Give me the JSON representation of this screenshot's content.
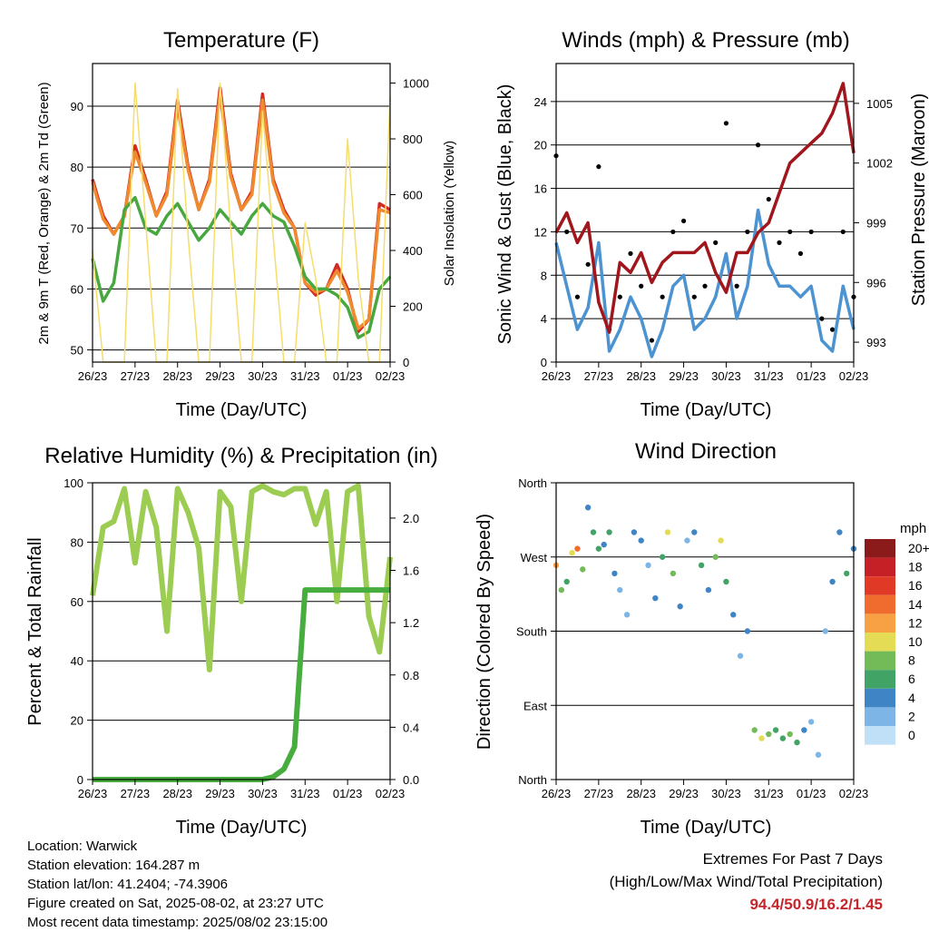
{
  "colors": {
    "temp_red": "#d42a24",
    "temp_orange": "#f08a2e",
    "dewpoint_green": "#48a83f",
    "solar_yellow": "#f6dd6b",
    "gust_black": "#000000",
    "wind_blue": "#4b93d1",
    "pressure_maroon": "#a0161c",
    "humidity_green": "#9ccd52",
    "precip_green": "#46ad3e",
    "extremes_red": "#c3262b"
  },
  "panels": {
    "temperature": {
      "title": "Temperature (F)",
      "ylabel_left": "2m & 9m T (Red, Orange) & 2m Td (Green)",
      "ylabel_right": "Solar Insolation (Yellow)",
      "xlabel": "Time (Day/UTC)"
    },
    "winds": {
      "title": "Winds (mph) & Pressure (mb)",
      "ylabel_left": "Sonic Wind & Gust (Blue, Black)",
      "ylabel_right": "Station Pressure (Maroon)",
      "xlabel": "Time (Day/UTC)"
    },
    "humidity": {
      "title": "Relative Humidity (%) & Precipitation (in)",
      "ylabel_left": "Percent & Total Rainfall",
      "xlabel": "Time (Day/UTC)"
    },
    "direction": {
      "title": "Wind Direction",
      "ylabel_left": "Direction (Colored By Speed)",
      "xlabel": "Time (Day/UTC)",
      "legend_title": "mph"
    }
  },
  "chart_data": [
    {
      "type": "line",
      "title": "Temperature (F)",
      "xlabel": "Time (Day/UTC)",
      "ylabel": "2m & 9m T (Red, Orange) & 2m Td (Green)",
      "y2label": "Solar Insolation (Yellow)",
      "x_ticks": [
        "26/23",
        "27/23",
        "28/23",
        "29/23",
        "30/23",
        "31/23",
        "01/23",
        "02/23"
      ],
      "ylim": [
        48,
        97
      ],
      "y_ticks": [
        50,
        60,
        70,
        80,
        90
      ],
      "y2lim": [
        0,
        1070
      ],
      "y2_ticks": [
        0,
        200,
        400,
        600,
        800,
        1000
      ],
      "grid": true,
      "x_hours": [
        0,
        6,
        12,
        18,
        24,
        30,
        36,
        42,
        48,
        54,
        60,
        66,
        72,
        78,
        84,
        90,
        96,
        102,
        108,
        114,
        120,
        126,
        132,
        138,
        144,
        150,
        156,
        162,
        168
      ],
      "series": [
        {
          "name": "2m T",
          "color": "#d42a24",
          "axis": "left",
          "values": [
            78,
            72,
            69,
            72,
            83.5,
            78,
            72,
            76,
            91,
            80,
            73,
            78,
            93,
            79,
            73,
            76,
            92,
            78,
            73,
            70,
            61,
            59,
            60,
            64,
            60,
            53,
            55,
            74,
            73
          ]
        },
        {
          "name": "9m T",
          "color": "#f08a2e",
          "axis": "left",
          "values": [
            77.5,
            71.5,
            69,
            72,
            82.5,
            77.5,
            72,
            75.5,
            90,
            79.5,
            73,
            77.5,
            92,
            78.5,
            73,
            75.5,
            91,
            77.5,
            72.5,
            70,
            61,
            59.5,
            60,
            63,
            59.5,
            53.5,
            55,
            73,
            72.5
          ]
        },
        {
          "name": "2m Td",
          "color": "#48a83f",
          "axis": "left",
          "values": [
            65,
            58,
            61,
            73,
            75,
            70,
            69,
            72,
            74,
            71,
            68,
            70,
            73,
            71,
            69,
            72,
            74,
            72,
            71,
            67,
            62,
            60,
            60,
            59,
            57,
            52,
            53,
            60,
            62
          ]
        },
        {
          "name": "Solar Insolation",
          "color": "#f6dd6b",
          "axis": "right",
          "values": [
            400,
            0,
            0,
            0,
            1000,
            500,
            0,
            0,
            980,
            450,
            0,
            0,
            1000,
            480,
            0,
            0,
            900,
            450,
            0,
            0,
            500,
            300,
            0,
            0,
            800,
            300,
            0,
            0,
            950
          ]
        }
      ]
    },
    {
      "type": "scatter",
      "title": "Winds (mph) & Pressure (mb)",
      "xlabel": "Time (Day/UTC)",
      "ylabel": "Sonic Wind & Gust (Blue, Black)",
      "y2label": "Station Pressure (Maroon)",
      "x_ticks": [
        "26/23",
        "27/23",
        "28/23",
        "29/23",
        "30/23",
        "31/23",
        "01/23",
        "02/23"
      ],
      "ylim": [
        0,
        27.5
      ],
      "y_ticks": [
        0,
        4,
        8,
        12,
        16,
        20,
        24
      ],
      "y2lim": [
        992,
        1007
      ],
      "y2_ticks": [
        993,
        996,
        999,
        1002,
        1005
      ],
      "grid": true,
      "x_hours": [
        0,
        6,
        12,
        18,
        24,
        30,
        36,
        42,
        48,
        54,
        60,
        66,
        72,
        78,
        84,
        90,
        96,
        102,
        108,
        114,
        120,
        126,
        132,
        138,
        144,
        150,
        156,
        162,
        168
      ],
      "series": [
        {
          "name": "Gust",
          "color": "#000000",
          "axis": "left",
          "values": [
            19,
            12,
            6,
            9,
            18,
            3,
            6,
            10,
            7,
            2,
            6,
            12,
            13,
            6,
            7,
            11,
            22,
            7,
            12,
            20,
            15,
            11,
            12,
            10,
            12,
            4,
            3,
            12,
            6
          ]
        },
        {
          "name": "Sonic Wind",
          "color": "#4b93d1",
          "axis": "left",
          "values": [
            11,
            7,
            3,
            5,
            11,
            1,
            3,
            6,
            4,
            0.5,
            3,
            7,
            8,
            3,
            4,
            6,
            10,
            4,
            7,
            14,
            9,
            7,
            7,
            6,
            7,
            2,
            1,
            7,
            3
          ]
        },
        {
          "name": "Station Pressure",
          "color": "#a0161c",
          "axis": "right",
          "values": [
            998.5,
            999.5,
            998,
            999,
            995,
            993.5,
            997,
            996.5,
            997.5,
            996,
            997,
            997.5,
            997.5,
            997.5,
            998,
            996.5,
            995.5,
            997.5,
            997.5,
            998.5,
            999,
            1000.5,
            1002,
            1002.5,
            1003,
            1003.5,
            1004.5,
            1006,
            1002.5
          ]
        }
      ]
    },
    {
      "type": "line",
      "title": "Relative Humidity (%) & Precipitation (in)",
      "xlabel": "Time (Day/UTC)",
      "ylabel": "Percent & Total Rainfall",
      "x_ticks": [
        "26/23",
        "27/23",
        "28/23",
        "29/23",
        "30/23",
        "31/23",
        "01/23",
        "02/23"
      ],
      "ylim": [
        0,
        100
      ],
      "y_ticks": [
        0,
        20,
        40,
        60,
        80,
        100
      ],
      "y2lim": [
        0,
        2.27
      ],
      "y2_ticks": [
        0.0,
        0.4,
        0.8,
        1.2,
        1.6,
        2.0
      ],
      "grid": true,
      "x_hours": [
        0,
        6,
        12,
        18,
        24,
        30,
        36,
        42,
        48,
        54,
        60,
        66,
        72,
        78,
        84,
        90,
        96,
        102,
        108,
        114,
        120,
        126,
        132,
        138,
        144,
        150,
        156,
        162,
        168
      ],
      "series": [
        {
          "name": "Relative Humidity",
          "color": "#9ccd52",
          "axis": "left",
          "values": [
            62,
            85,
            87,
            98,
            73,
            97,
            85,
            50,
            98,
            90,
            78,
            37,
            97,
            92,
            60,
            97,
            99,
            97,
            96,
            98,
            98,
            86,
            97,
            60,
            97,
            99,
            55,
            43,
            75
          ]
        },
        {
          "name": "Total Precipitation",
          "color": "#46ad3e",
          "axis": "right",
          "values": [
            0,
            0,
            0,
            0,
            0,
            0,
            0,
            0,
            0,
            0,
            0,
            0,
            0,
            0,
            0,
            0,
            0,
            0.02,
            0.08,
            0.25,
            1.45,
            1.45,
            1.45,
            1.45,
            1.45,
            1.45,
            1.45,
            1.45,
            1.45
          ]
        }
      ]
    },
    {
      "type": "scatter",
      "title": "Wind Direction",
      "xlabel": "Time (Day/UTC)",
      "ylabel": "Direction (Colored By Speed)",
      "x_ticks": [
        "26/23",
        "27/23",
        "28/23",
        "29/23",
        "30/23",
        "31/23",
        "01/23",
        "02/23"
      ],
      "y_ticks": [
        "North",
        "East",
        "South",
        "West",
        "North"
      ],
      "ylim": [
        0,
        360
      ],
      "grid": true,
      "legend_title": "mph",
      "legend_position": "right",
      "legend": [
        {
          "label": "20+",
          "color": "#8b1a1a"
        },
        {
          "label": "18",
          "color": "#c42025"
        },
        {
          "label": "16",
          "color": "#e03a27"
        },
        {
          "label": "14",
          "color": "#f06b2e"
        },
        {
          "label": "12",
          "color": "#f7a044"
        },
        {
          "label": "10",
          "color": "#e4dc55"
        },
        {
          "label": "8",
          "color": "#73bb58"
        },
        {
          "label": "6",
          "color": "#42a366"
        },
        {
          "label": "4",
          "color": "#3f84c4"
        },
        {
          "label": "2",
          "color": "#7db6e6"
        },
        {
          "label": "0",
          "color": "#bfe0f6"
        }
      ],
      "points_hours": [
        0,
        3,
        6,
        9,
        12,
        15,
        18,
        21,
        24,
        27,
        30,
        33,
        36,
        40,
        44,
        48,
        52,
        56,
        60,
        63,
        66,
        70,
        74,
        78,
        82,
        86,
        90,
        93,
        96,
        100,
        104,
        108,
        112,
        116,
        120,
        124,
        128,
        132,
        136,
        140,
        144,
        148,
        152,
        156,
        160,
        164,
        168
      ],
      "points_dir": [
        260,
        230,
        240,
        275,
        280,
        255,
        330,
        300,
        280,
        285,
        300,
        250,
        230,
        200,
        300,
        290,
        260,
        220,
        270,
        300,
        250,
        210,
        290,
        300,
        260,
        230,
        270,
        290,
        240,
        200,
        150,
        180,
        60,
        50,
        55,
        60,
        50,
        55,
        45,
        60,
        70,
        30,
        180,
        240,
        300,
        250,
        280
      ],
      "points_speed": [
        12,
        8,
        6,
        10,
        14,
        8,
        4,
        6,
        6,
        4,
        6,
        4,
        2,
        2,
        4,
        4,
        2,
        4,
        6,
        10,
        8,
        4,
        2,
        4,
        6,
        4,
        8,
        10,
        6,
        4,
        2,
        4,
        8,
        10,
        8,
        6,
        6,
        8,
        6,
        4,
        2,
        2,
        2,
        4,
        4,
        6,
        4
      ]
    }
  ],
  "info": {
    "location": "Location: Warwick",
    "elevation": "Station elevation: 164.287 m",
    "latlon": "Station lat/lon: 41.2404; -74.3906",
    "created": "Figure created on Sat, 2025-08-02, at 23:27 UTC",
    "timestamp": "Most recent data timestamp: 2025/08/02 23:15:00"
  },
  "extremes": {
    "title": "Extremes For Past 7 Days",
    "subtitle": "(High/Low/Max Wind/Total Precipitation)",
    "values": "94.4/50.9/16.2/1.45"
  }
}
